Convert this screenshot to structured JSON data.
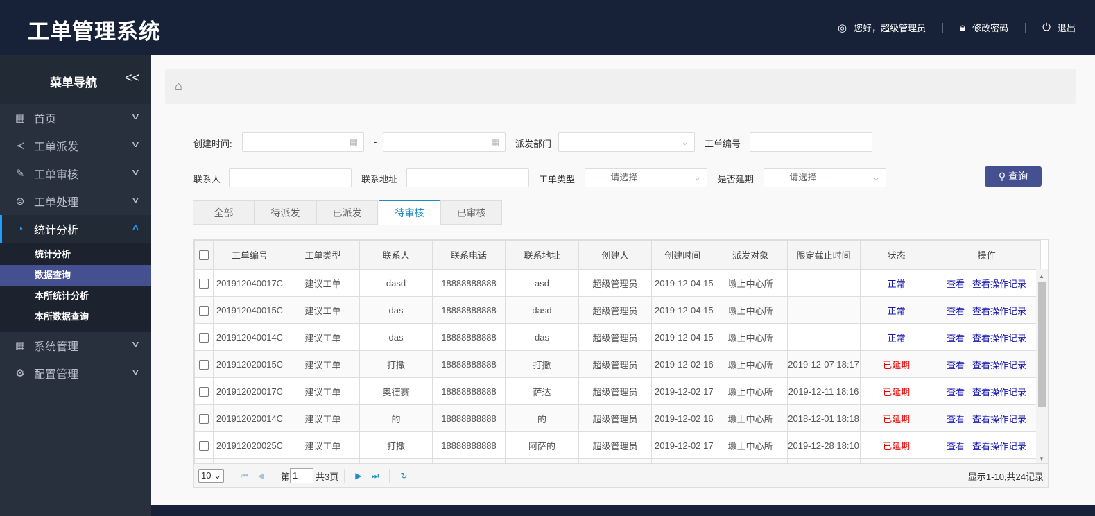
{
  "header": {
    "title": "工单管理系统",
    "greeting": "您好，超级管理员",
    "change_password": "修改密码",
    "logout": "退出"
  },
  "sidebar": {
    "title": "菜单导航",
    "collapse": "<<",
    "items": [
      {
        "label": "首页",
        "icon": "grid-icon"
      },
      {
        "label": "工单派发",
        "icon": "share-icon"
      },
      {
        "label": "工单审核",
        "icon": "edit-icon"
      },
      {
        "label": "工单处理",
        "icon": "database-icon"
      },
      {
        "label": "统计分析",
        "icon": "pie-chart-icon",
        "expanded": true
      },
      {
        "label": "系统管理",
        "icon": "grid-icon"
      },
      {
        "label": "配置管理",
        "icon": "gear-icon"
      }
    ],
    "subitems": [
      {
        "label": "统计分析"
      },
      {
        "label": "数据查询",
        "selected": true
      },
      {
        "label": "本所统计分析"
      },
      {
        "label": "本所数据查询"
      }
    ]
  },
  "filters": {
    "create_time": "创建时间:",
    "dash": "-",
    "dept": "派发部门",
    "order_no": "工单编号",
    "contact": "联系人",
    "address": "联系地址",
    "type": "工单类型",
    "type_value": "-------请选择-------",
    "delayed": "是否延期",
    "delayed_value": "-------请选择-------",
    "search": "查询"
  },
  "tabs": [
    {
      "label": "全部"
    },
    {
      "label": "待派发"
    },
    {
      "label": "已派发"
    },
    {
      "label": "待审核",
      "active": true
    },
    {
      "label": "已审核"
    }
  ],
  "table": {
    "columns": [
      "工单编号",
      "工单类型",
      "联系人",
      "联系电话",
      "联系地址",
      "创建人",
      "创建时间",
      "派发对象",
      "限定截止时间",
      "状态",
      "操作"
    ],
    "rows": [
      [
        "201912040017C",
        "建议工单",
        "dasd",
        "18888888888",
        "asd",
        "超级管理员",
        "2019-12-04 15",
        "墩上中心所",
        "---",
        "正常"
      ],
      [
        "201912040015C",
        "建议工单",
        "das",
        "18888888888",
        "dasd",
        "超级管理员",
        "2019-12-04 15",
        "墩上中心所",
        "---",
        "正常"
      ],
      [
        "201912040014C",
        "建议工单",
        "das",
        "18888888888",
        "das",
        "超级管理员",
        "2019-12-04 15",
        "墩上中心所",
        "---",
        "正常"
      ],
      [
        "201912020015C",
        "建议工单",
        "打撒",
        "18888888888",
        "打撒",
        "超级管理员",
        "2019-12-02 16",
        "墩上中心所",
        "2019-12-07 18:17",
        "已延期"
      ],
      [
        "201912020017C",
        "建议工单",
        "奥德赛",
        "18888888888",
        "萨达",
        "超级管理员",
        "2019-12-02 17",
        "墩上中心所",
        "2019-12-11 18:16",
        "已延期"
      ],
      [
        "201912020014C",
        "建议工单",
        "的",
        "18888888888",
        "的",
        "超级管理员",
        "2019-12-02 16",
        "墩上中心所",
        "2018-12-01 18:18",
        "已延期"
      ],
      [
        "201912020025C",
        "建议工单",
        "打撒",
        "18888888888",
        "阿萨的",
        "超级管理员",
        "2019-12-02 17",
        "墩上中心所",
        "2019-12-28 18:10",
        "已延期"
      ]
    ],
    "actions": {
      "view": "查看",
      "view_log": "查看操作记录"
    },
    "status_colors": {
      "正常": "#1a1ab0",
      "已延期": "#ee0000"
    }
  },
  "pagination": {
    "page_size": "10",
    "page_prefix": "第",
    "page": "1",
    "total_pages": "共3页",
    "summary": "显示1-10,共24记录"
  }
}
